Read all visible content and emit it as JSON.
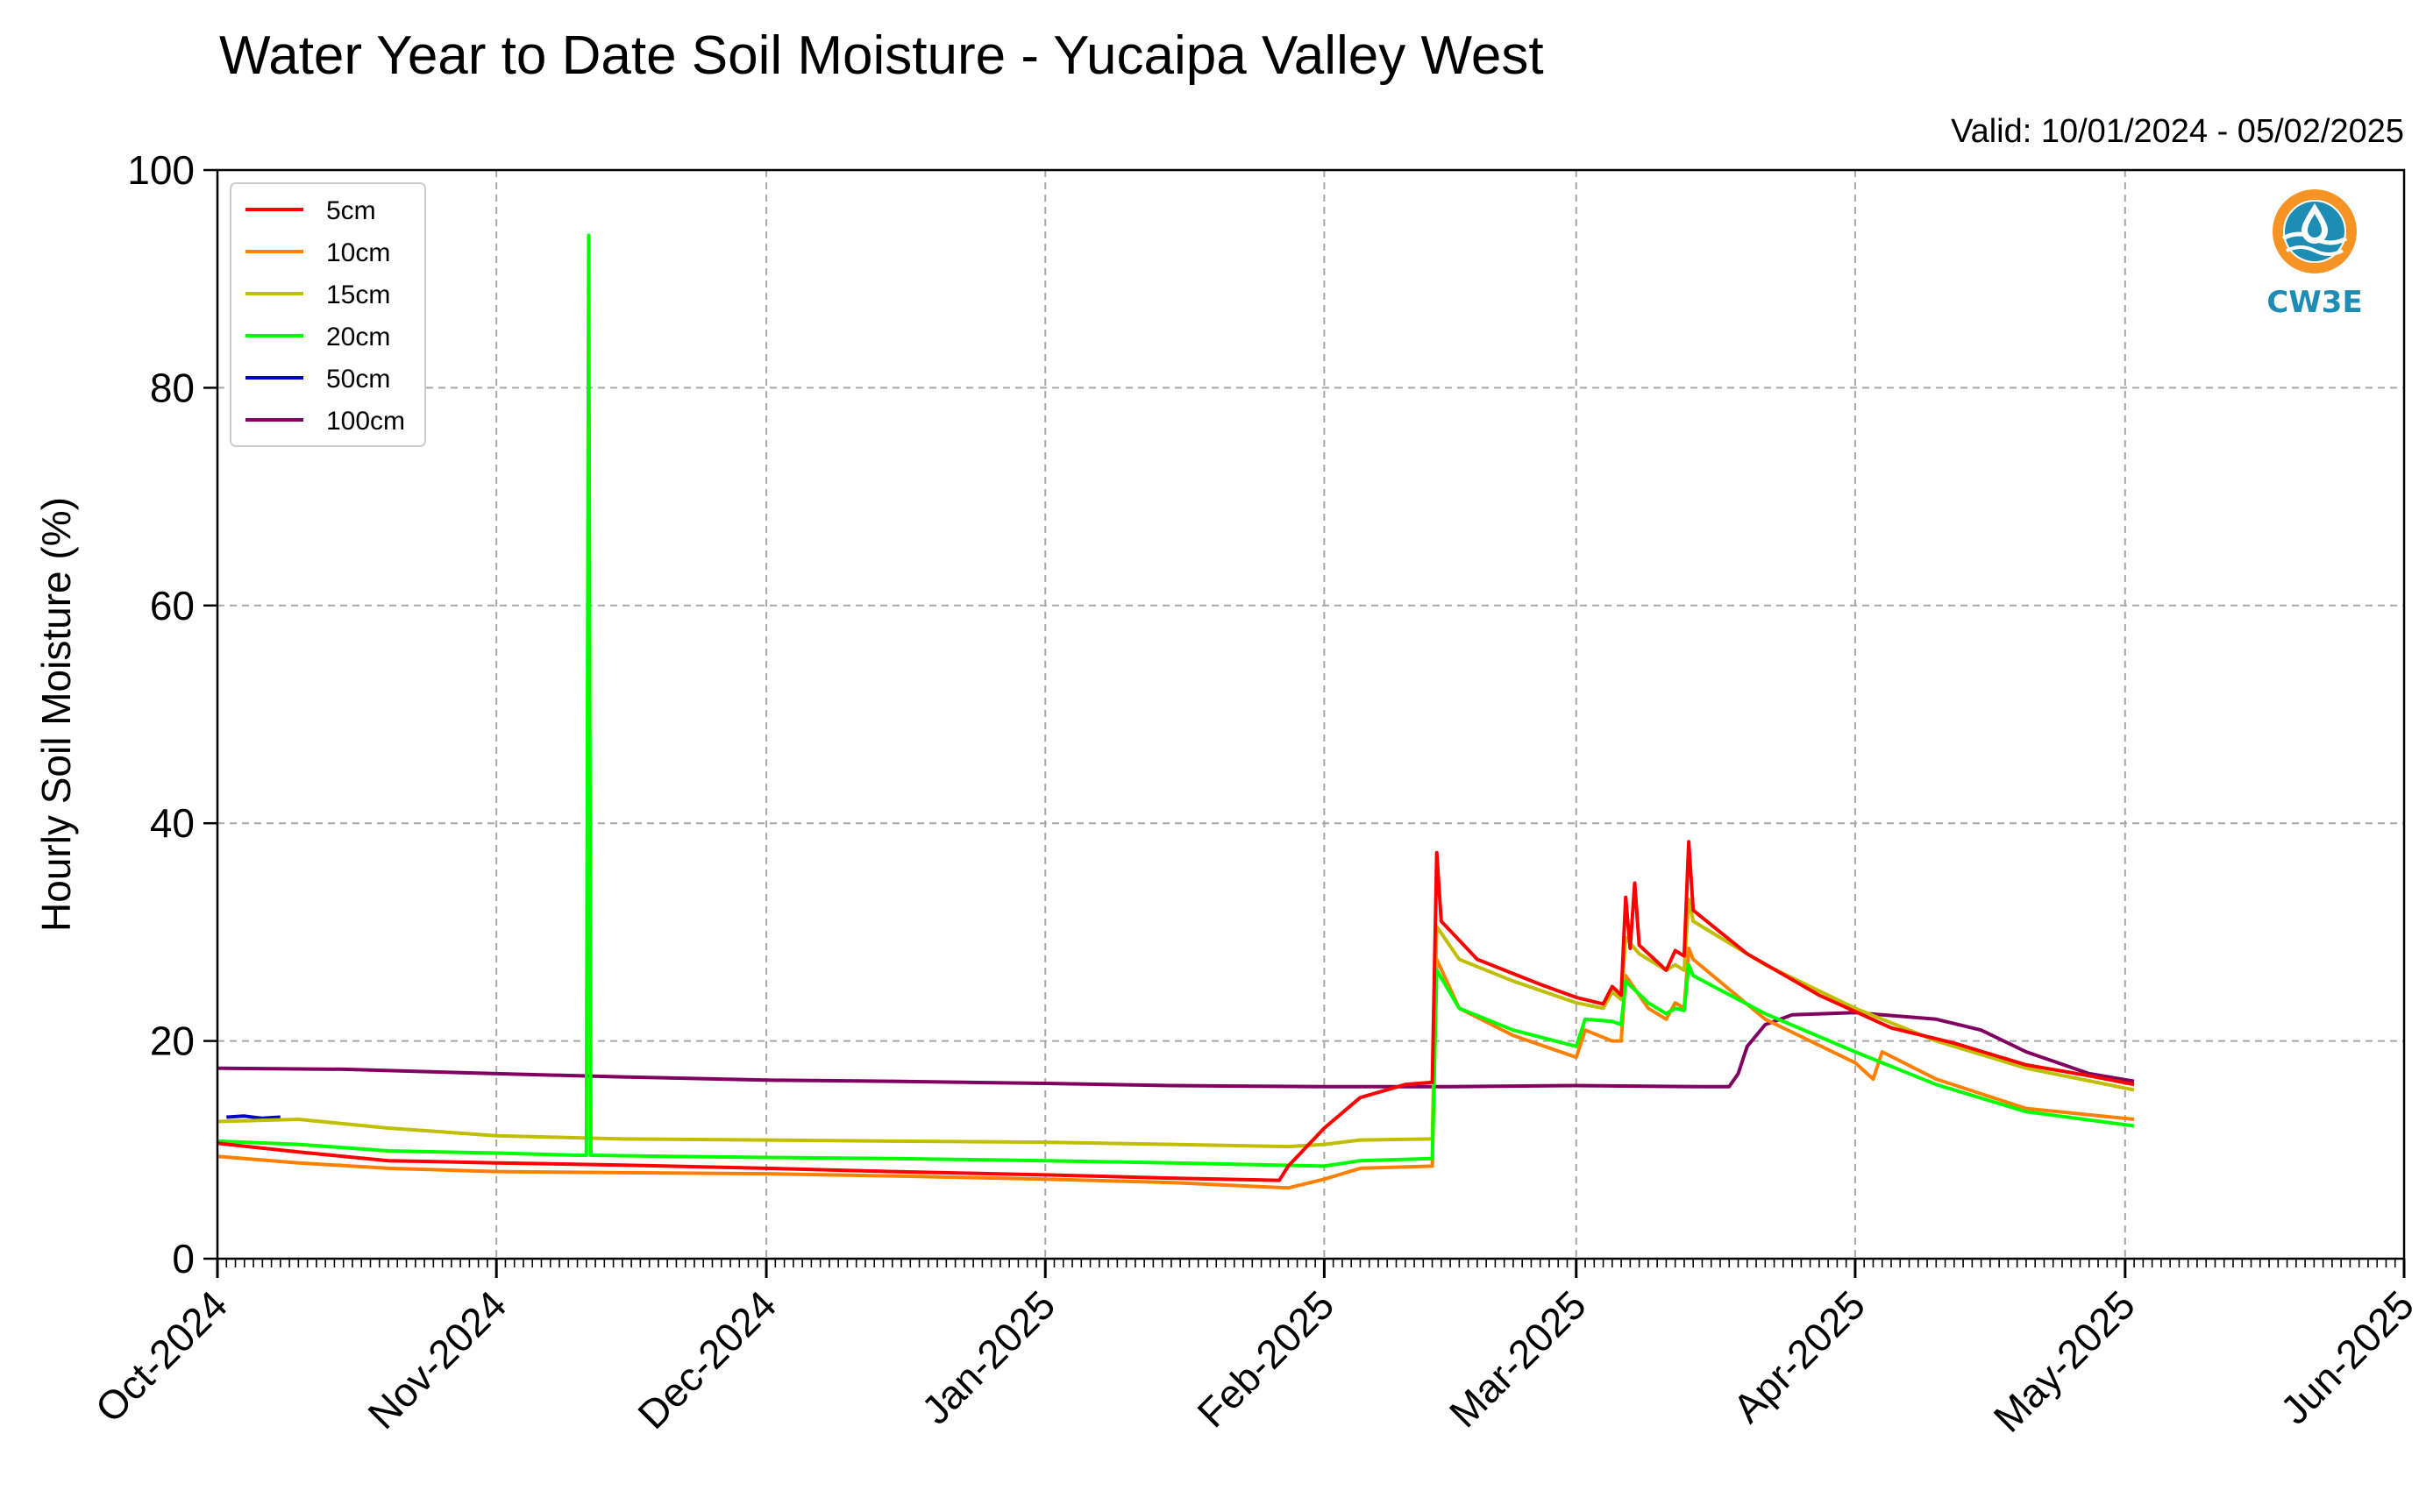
{
  "chart_data": {
    "type": "line",
    "title": "Water Year to Date Soil Moisture - Yucaipa Valley West",
    "subtitle": "Valid: 10/01/2024 - 05/02/2025",
    "xlabel": "",
    "ylabel": "Hourly Soil Moisture (%)",
    "ylim": [
      0,
      100
    ],
    "xlim": [
      "2024-10-01",
      "2025-06-01"
    ],
    "y_ticks": [
      0,
      20,
      40,
      60,
      80,
      100
    ],
    "x_ticks": [
      {
        "date": "2024-10-01",
        "label": "Oct-2024"
      },
      {
        "date": "2024-11-01",
        "label": "Nov-2024"
      },
      {
        "date": "2024-12-01",
        "label": "Dec-2024"
      },
      {
        "date": "2025-01-01",
        "label": "Jan-2025"
      },
      {
        "date": "2025-02-01",
        "label": "Feb-2025"
      },
      {
        "date": "2025-03-01",
        "label": "Mar-2025"
      },
      {
        "date": "2025-04-01",
        "label": "Apr-2025"
      },
      {
        "date": "2025-05-01",
        "label": "May-2025"
      },
      {
        "date": "2025-06-01",
        "label": "Jun-2025"
      }
    ],
    "grid": true,
    "legend_position": "top-left",
    "series": [
      {
        "name": "5cm",
        "color": "#ff0000",
        "points": [
          [
            "2024-10-01",
            10.6
          ],
          [
            "2024-10-10",
            9.8
          ],
          [
            "2024-10-20",
            9.0
          ],
          [
            "2024-11-01",
            8.8
          ],
          [
            "2024-11-15",
            8.6
          ],
          [
            "2024-12-01",
            8.3
          ],
          [
            "2024-12-15",
            8.0
          ],
          [
            "2025-01-01",
            7.7
          ],
          [
            "2025-01-15",
            7.4
          ],
          [
            "2025-01-27",
            7.2
          ],
          [
            "2025-01-28",
            8.5
          ],
          [
            "2025-02-01",
            12.0
          ],
          [
            "2025-02-05",
            14.8
          ],
          [
            "2025-02-10",
            16.0
          ],
          [
            "2025-02-13",
            16.2
          ],
          [
            "2025-02-13T12",
            37.3
          ],
          [
            "2025-02-14",
            31.0
          ],
          [
            "2025-02-18",
            27.5
          ],
          [
            "2025-02-25",
            25.2
          ],
          [
            "2025-03-01",
            24.0
          ],
          [
            "2025-03-04",
            23.4
          ],
          [
            "2025-03-05",
            25.0
          ],
          [
            "2025-03-06",
            24.2
          ],
          [
            "2025-03-06T12",
            33.2
          ],
          [
            "2025-03-07",
            28.5
          ],
          [
            "2025-03-07T12",
            34.5
          ],
          [
            "2025-03-08",
            28.8
          ],
          [
            "2025-03-11",
            26.5
          ],
          [
            "2025-03-12",
            28.3
          ],
          [
            "2025-03-13",
            27.8
          ],
          [
            "2025-03-13T12",
            38.3
          ],
          [
            "2025-03-14",
            32.0
          ],
          [
            "2025-03-20",
            28.0
          ],
          [
            "2025-03-28",
            24.2
          ],
          [
            "2025-04-05",
            21.2
          ],
          [
            "2025-04-12",
            19.8
          ],
          [
            "2025-04-20",
            17.8
          ],
          [
            "2025-04-27",
            16.8
          ],
          [
            "2025-05-02",
            16.0
          ]
        ]
      },
      {
        "name": "10cm",
        "color": "#ff8000",
        "points": [
          [
            "2024-10-01",
            9.4
          ],
          [
            "2024-10-10",
            8.8
          ],
          [
            "2024-10-20",
            8.3
          ],
          [
            "2024-11-01",
            8.0
          ],
          [
            "2024-11-15",
            7.9
          ],
          [
            "2024-12-01",
            7.8
          ],
          [
            "2024-12-15",
            7.6
          ],
          [
            "2025-01-01",
            7.3
          ],
          [
            "2025-01-15",
            7.0
          ],
          [
            "2025-01-28",
            6.5
          ],
          [
            "2025-02-01",
            7.3
          ],
          [
            "2025-02-05",
            8.3
          ],
          [
            "2025-02-13",
            8.5
          ],
          [
            "2025-02-13T12",
            27.5
          ],
          [
            "2025-02-16",
            23.0
          ],
          [
            "2025-02-22",
            20.5
          ],
          [
            "2025-03-01",
            18.5
          ],
          [
            "2025-03-02",
            21.0
          ],
          [
            "2025-03-05",
            20.0
          ],
          [
            "2025-03-06",
            20.0
          ],
          [
            "2025-03-06T12",
            26.0
          ],
          [
            "2025-03-09",
            23.0
          ],
          [
            "2025-03-11",
            22.0
          ],
          [
            "2025-03-12",
            23.5
          ],
          [
            "2025-03-13",
            23.0
          ],
          [
            "2025-03-13T12",
            28.5
          ],
          [
            "2025-03-14",
            27.5
          ],
          [
            "2025-03-22",
            22.0
          ],
          [
            "2025-04-01",
            18.0
          ],
          [
            "2025-04-03",
            16.5
          ],
          [
            "2025-04-04",
            19.0
          ],
          [
            "2025-04-10",
            16.5
          ],
          [
            "2025-04-20",
            13.8
          ],
          [
            "2025-05-02",
            12.8
          ]
        ]
      },
      {
        "name": "15cm",
        "color": "#bfbf00",
        "points": [
          [
            "2024-10-01",
            12.6
          ],
          [
            "2024-10-10",
            12.8
          ],
          [
            "2024-10-20",
            12.0
          ],
          [
            "2024-11-01",
            11.3
          ],
          [
            "2024-11-15",
            11.0
          ],
          [
            "2024-12-01",
            10.9
          ],
          [
            "2024-12-15",
            10.8
          ],
          [
            "2025-01-01",
            10.7
          ],
          [
            "2025-01-15",
            10.5
          ],
          [
            "2025-01-28",
            10.3
          ],
          [
            "2025-02-01",
            10.5
          ],
          [
            "2025-02-05",
            10.9
          ],
          [
            "2025-02-13",
            11.0
          ],
          [
            "2025-02-13T12",
            30.5
          ],
          [
            "2025-02-16",
            27.5
          ],
          [
            "2025-02-22",
            25.5
          ],
          [
            "2025-03-01",
            23.5
          ],
          [
            "2025-03-04",
            23.0
          ],
          [
            "2025-03-05",
            24.5
          ],
          [
            "2025-03-06",
            23.8
          ],
          [
            "2025-03-06T12",
            29.5
          ],
          [
            "2025-03-08",
            28.0
          ],
          [
            "2025-03-11",
            26.5
          ],
          [
            "2025-03-12",
            27.0
          ],
          [
            "2025-03-13",
            26.5
          ],
          [
            "2025-03-13T12",
            33.0
          ],
          [
            "2025-03-14",
            31.0
          ],
          [
            "2025-03-22",
            27.0
          ],
          [
            "2025-04-01",
            23.0
          ],
          [
            "2025-04-10",
            20.0
          ],
          [
            "2025-04-20",
            17.5
          ],
          [
            "2025-05-02",
            15.5
          ]
        ]
      },
      {
        "name": "20cm",
        "color": "#00ff00",
        "points": [
          [
            "2024-10-01",
            10.8
          ],
          [
            "2024-10-10",
            10.5
          ],
          [
            "2024-10-20",
            9.9
          ],
          [
            "2024-11-01",
            9.7
          ],
          [
            "2024-11-10",
            9.5
          ],
          [
            "2024-11-11",
            9.5
          ],
          [
            "2024-11-11T06",
            94.0
          ],
          [
            "2024-11-11T12",
            9.5
          ],
          [
            "2024-11-20",
            9.4
          ],
          [
            "2024-12-01",
            9.3
          ],
          [
            "2024-12-15",
            9.2
          ],
          [
            "2025-01-01",
            9.0
          ],
          [
            "2025-01-15",
            8.8
          ],
          [
            "2025-02-01",
            8.5
          ],
          [
            "2025-02-05",
            9.0
          ],
          [
            "2025-02-13",
            9.2
          ],
          [
            "2025-02-13T12",
            26.5
          ],
          [
            "2025-02-16",
            23.0
          ],
          [
            "2025-02-22",
            21.0
          ],
          [
            "2025-03-01",
            19.5
          ],
          [
            "2025-03-02",
            22.0
          ],
          [
            "2025-03-05",
            21.8
          ],
          [
            "2025-03-06",
            21.5
          ],
          [
            "2025-03-06T12",
            25.5
          ],
          [
            "2025-03-09",
            23.5
          ],
          [
            "2025-03-11",
            22.5
          ],
          [
            "2025-03-12",
            23.0
          ],
          [
            "2025-03-13",
            22.8
          ],
          [
            "2025-03-13T12",
            27.0
          ],
          [
            "2025-03-14",
            26.0
          ],
          [
            "2025-03-22",
            22.5
          ],
          [
            "2025-04-01",
            19.0
          ],
          [
            "2025-04-10",
            16.0
          ],
          [
            "2025-04-20",
            13.5
          ],
          [
            "2025-05-02",
            12.2
          ]
        ]
      },
      {
        "name": "50cm",
        "color": "#0000cc",
        "points": [
          [
            "2024-10-02",
            13.0
          ],
          [
            "2024-10-04",
            13.1
          ],
          [
            "2024-10-06",
            12.9
          ],
          [
            "2024-10-08",
            13.0
          ]
        ]
      },
      {
        "name": "100cm",
        "color": "#800060",
        "points": [
          [
            "2024-10-01",
            17.5
          ],
          [
            "2024-10-15",
            17.4
          ],
          [
            "2024-11-01",
            17.0
          ],
          [
            "2024-11-15",
            16.7
          ],
          [
            "2024-12-01",
            16.4
          ],
          [
            "2024-12-15",
            16.3
          ],
          [
            "2025-01-01",
            16.1
          ],
          [
            "2025-01-15",
            15.9
          ],
          [
            "2025-02-01",
            15.8
          ],
          [
            "2025-02-15",
            15.8
          ],
          [
            "2025-03-01",
            15.9
          ],
          [
            "2025-03-15",
            15.8
          ],
          [
            "2025-03-18",
            15.8
          ],
          [
            "2025-03-19",
            17.0
          ],
          [
            "2025-03-20",
            19.5
          ],
          [
            "2025-03-22",
            21.5
          ],
          [
            "2025-03-25",
            22.4
          ],
          [
            "2025-04-01",
            22.6
          ],
          [
            "2025-04-10",
            22.0
          ],
          [
            "2025-04-15",
            21.0
          ],
          [
            "2025-04-20",
            19.0
          ],
          [
            "2025-04-27",
            17.0
          ],
          [
            "2025-05-02",
            16.3
          ]
        ]
      }
    ]
  },
  "logo": {
    "text": "CW3E",
    "name": "cw3e-logo",
    "ring_color": "#f59324",
    "water_color": "#1e8db3"
  }
}
